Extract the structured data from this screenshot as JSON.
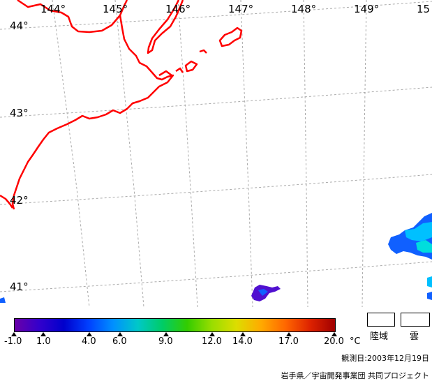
{
  "lon_labels": [
    "144°",
    "145°",
    "146°",
    "147°",
    "148°",
    "149°",
    "15"
  ],
  "lat_labels": [
    "44°",
    "43°",
    "42°",
    "41°"
  ],
  "colorbar": {
    "ticks": [
      "-1.0",
      "1.0",
      "4.0",
      "6.0",
      "9.0",
      "12.0",
      "14.0",
      "17.0",
      "20.0"
    ],
    "unit": "°C",
    "colors": [
      "#6a00a8",
      "#3300cc",
      "#0000cc",
      "#0040ff",
      "#0090ff",
      "#00c8c8",
      "#00cc66",
      "#33cc00",
      "#99dd00",
      "#dddd00",
      "#ffaa00",
      "#ff6600",
      "#dd2200",
      "#a00000"
    ]
  },
  "legend": {
    "land_label": "陸域",
    "cloud_label": "雲"
  },
  "footer": {
    "observation_date": "観測日:2003年12月19日",
    "credit": "岩手県／宇宙開発事業団 共同プロジェクト"
  },
  "map_colors": {
    "coast": "#ff0000",
    "grid": "#aaaaaa",
    "sst_blue": "#1060ff",
    "sst_purple": "#5010d0"
  }
}
